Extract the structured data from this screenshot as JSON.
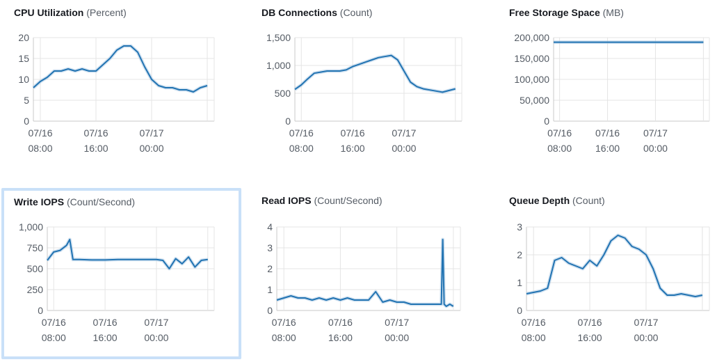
{
  "colors": {
    "series": "#2173b2",
    "selected_border": "#c9e0f8",
    "grid": "#e4e4e4"
  },
  "panels": [
    {
      "metric": "CPU Utilization",
      "unit": "(Percent)",
      "selected": false
    },
    {
      "metric": "DB Connections",
      "unit": "(Count)",
      "selected": false
    },
    {
      "metric": "Free Storage Space",
      "unit": "(MB)",
      "selected": false
    },
    {
      "metric": "Write IOPS",
      "unit": "(Count/Second)",
      "selected": true
    },
    {
      "metric": "Read IOPS",
      "unit": "(Count/Second)",
      "selected": false
    },
    {
      "metric": "Queue Depth",
      "unit": "(Count)",
      "selected": false
    }
  ],
  "chart_data": [
    {
      "type": "line",
      "title": "CPU Utilization",
      "unit": "(Percent)",
      "x_ticks": [
        "07/16 08:00",
        "07/16 16:00",
        "07/17 00:00"
      ],
      "y_ticks": [
        "0",
        "5",
        "10",
        "15",
        "20"
      ],
      "ylim": [
        0,
        20
      ],
      "grid": true,
      "series": [
        {
          "x": [
            7.0,
            8.0,
            9.0,
            10.0,
            11.0,
            12.0,
            13.0,
            14.0,
            15.0,
            16.0,
            17.0,
            18.0,
            19.0,
            20.0,
            21.0,
            22.0,
            23.0,
            24.0,
            25.0,
            26.0,
            27.0,
            28.0,
            29.0,
            30.0,
            31.0,
            32.0
          ],
          "values": [
            8,
            9.5,
            10.5,
            12,
            12,
            12.5,
            12,
            12.5,
            12,
            12,
            13.5,
            15,
            17,
            18,
            18,
            16.5,
            13,
            10,
            8.5,
            8,
            8,
            7.5,
            7.5,
            7,
            8,
            8.5
          ]
        }
      ]
    },
    {
      "type": "line",
      "title": "DB Connections",
      "unit": "(Count)",
      "x_ticks": [
        "07/16 08:00",
        "07/16 16:00",
        "07/17 00:00"
      ],
      "y_ticks": [
        "0",
        "500",
        "1,000",
        "1,500"
      ],
      "ylim": [
        0,
        1500
      ],
      "grid": true,
      "series": [
        {
          "x": [
            7.0,
            8.0,
            9.0,
            10.0,
            11.0,
            12.0,
            13.0,
            14.0,
            15.0,
            16.0,
            17.0,
            18.0,
            19.0,
            20.0,
            21.0,
            22.0,
            23.0,
            24.0,
            25.0,
            26.0,
            27.0,
            28.0,
            29.0,
            30.0,
            31.0,
            32.0
          ],
          "values": [
            570,
            650,
            760,
            860,
            880,
            900,
            900,
            900,
            920,
            980,
            1020,
            1060,
            1100,
            1140,
            1160,
            1180,
            1100,
            900,
            700,
            620,
            580,
            560,
            540,
            520,
            550,
            580
          ]
        }
      ]
    },
    {
      "type": "line",
      "title": "Free Storage Space",
      "unit": "(MB)",
      "x_ticks": [
        "07/16 08:00",
        "07/16 16:00",
        "07/17 00:00"
      ],
      "y_ticks": [
        "0",
        "50,000",
        "100,000",
        "150,000",
        "200,000"
      ],
      "ylim": [
        0,
        200000
      ],
      "grid": true,
      "series": [
        {
          "x": [
            7.0,
            32.0
          ],
          "values": [
            189000,
            189000
          ]
        }
      ]
    },
    {
      "type": "line",
      "title": "Write IOPS",
      "unit": "(Count/Second)",
      "x_ticks": [
        "07/16 08:00",
        "07/16 16:00",
        "07/17 00:00"
      ],
      "y_ticks": [
        "0",
        "250",
        "500",
        "750",
        "1,000"
      ],
      "ylim": [
        0,
        1000
      ],
      "grid": true,
      "series": [
        {
          "x": [
            7.0,
            8.0,
            9.0,
            10.0,
            10.5,
            11.0,
            12.0,
            14.0,
            16.0,
            18.0,
            20.0,
            22.0,
            24.0,
            25.0,
            26.0,
            27.0,
            28.0,
            29.0,
            30.0,
            31.0,
            32.0
          ],
          "values": [
            600,
            700,
            720,
            780,
            850,
            610,
            610,
            605,
            605,
            610,
            610,
            610,
            610,
            600,
            500,
            620,
            560,
            640,
            520,
            600,
            610
          ]
        }
      ]
    },
    {
      "type": "line",
      "title": "Read IOPS",
      "unit": "(Count/Second)",
      "x_ticks": [
        "07/16 08:00",
        "07/16 16:00",
        "07/17 00:00"
      ],
      "y_ticks": [
        "0",
        "1",
        "2",
        "3",
        "4"
      ],
      "ylim": [
        0,
        4
      ],
      "grid": true,
      "series": [
        {
          "x": [
            7.0,
            8.0,
            9.0,
            10.0,
            11.0,
            12.0,
            13.0,
            14.0,
            15.0,
            16.0,
            17.0,
            18.0,
            19.0,
            20.0,
            21.0,
            22.0,
            23.0,
            24.0,
            25.0,
            26.0,
            28.0,
            29.0,
            30.0,
            30.3,
            30.5,
            30.7,
            31.0,
            31.5,
            32.0
          ],
          "values": [
            0.5,
            0.6,
            0.7,
            0.6,
            0.6,
            0.5,
            0.6,
            0.5,
            0.6,
            0.5,
            0.6,
            0.5,
            0.5,
            0.5,
            0.9,
            0.4,
            0.5,
            0.4,
            0.4,
            0.3,
            0.3,
            0.3,
            0.3,
            0.3,
            3.4,
            0.3,
            0.2,
            0.3,
            0.2
          ]
        }
      ]
    },
    {
      "type": "line",
      "title": "Queue Depth",
      "unit": "(Count)",
      "x_ticks": [
        "07/16 08:00",
        "07/16 16:00",
        "07/17 00:00"
      ],
      "y_ticks": [
        "0",
        "1",
        "2",
        "3"
      ],
      "ylim": [
        0,
        3
      ],
      "grid": true,
      "series": [
        {
          "x": [
            7.0,
            8.0,
            9.0,
            10.0,
            11.0,
            12.0,
            13.0,
            14.0,
            15.0,
            16.0,
            17.0,
            18.0,
            19.0,
            20.0,
            21.0,
            22.0,
            23.0,
            24.0,
            25.0,
            26.0,
            27.0,
            28.0,
            29.0,
            30.0,
            31.0,
            32.0
          ],
          "values": [
            0.6,
            0.65,
            0.7,
            0.8,
            1.8,
            1.9,
            1.7,
            1.6,
            1.5,
            1.8,
            1.6,
            2.0,
            2.5,
            2.7,
            2.6,
            2.3,
            2.2,
            2.0,
            1.5,
            0.8,
            0.55,
            0.55,
            0.6,
            0.55,
            0.5,
            0.55
          ]
        }
      ]
    }
  ]
}
